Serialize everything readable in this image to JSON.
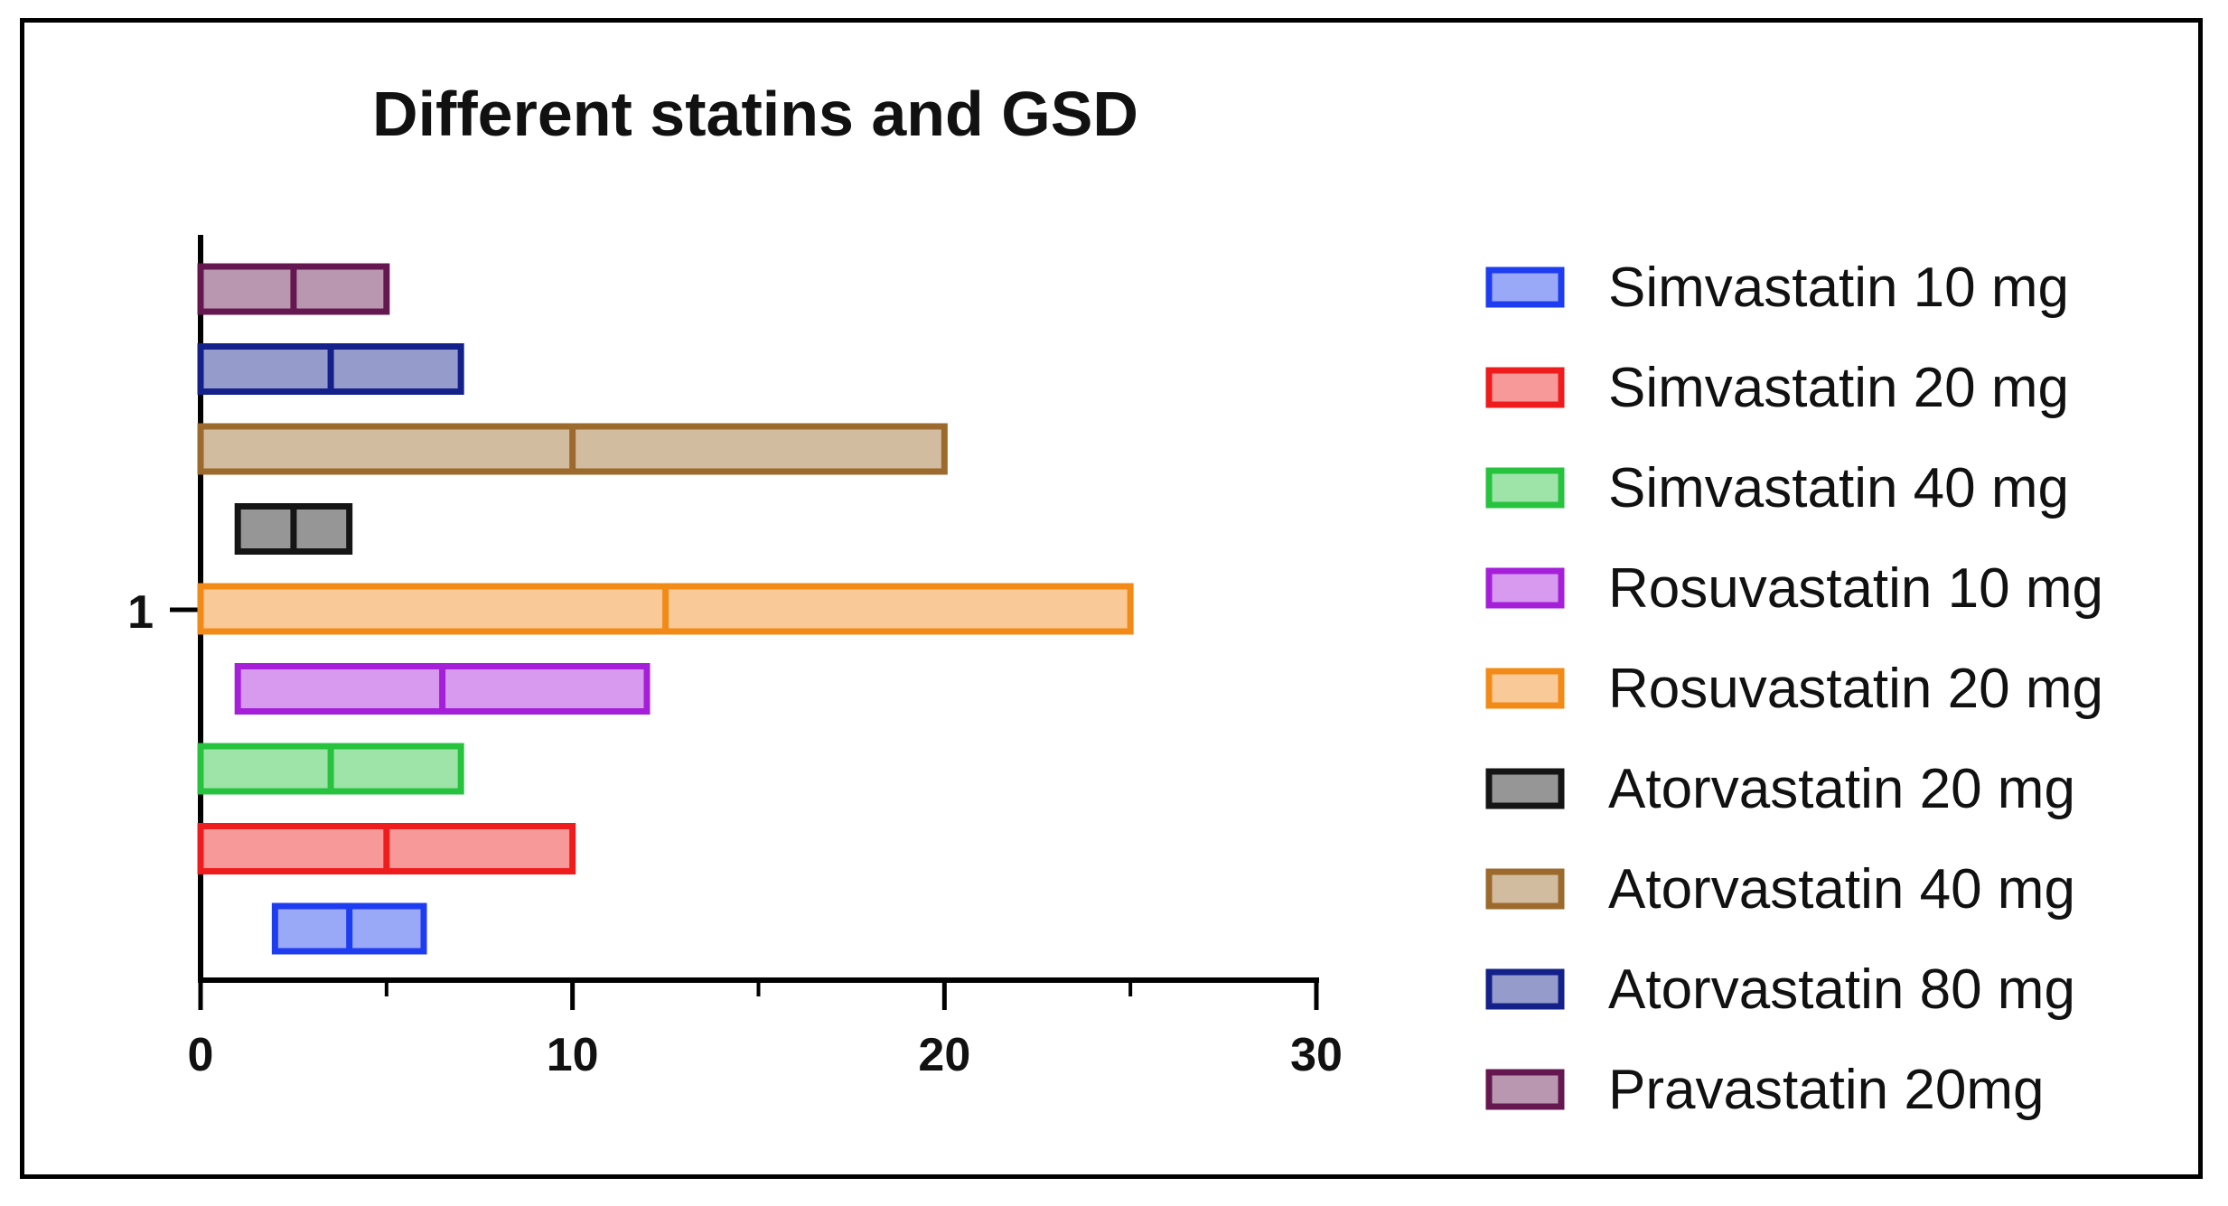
{
  "chart_data": {
    "type": "floating-bar",
    "orientation": "horizontal",
    "title": "Different statins and GSD",
    "xlabel": "",
    "ylabel": "",
    "xlim": [
      0,
      30
    ],
    "x_ticks": [
      "0",
      "10",
      "20",
      "30"
    ],
    "y_tick_labels": [
      "1"
    ],
    "grid": false,
    "legend_position": "right",
    "series": [
      {
        "name": "Simvastatin 10 mg",
        "min": 2,
        "median": 4,
        "max": 6,
        "color": "#1f3df0"
      },
      {
        "name": "Simvastatin 20 mg",
        "min": 0,
        "median": 5,
        "max": 10,
        "color": "#ee1c1c"
      },
      {
        "name": "Simvastatin 40 mg",
        "min": 0,
        "median": 3.5,
        "max": 7,
        "color": "#27c33f"
      },
      {
        "name": "Rosuvastatin 10 mg",
        "min": 1,
        "median": 6.5,
        "max": 12,
        "color": "#a51fd9"
      },
      {
        "name": "Rosuvastatin 20 mg",
        "min": 0,
        "median": 12.5,
        "max": 25,
        "color": "#f28a17"
      },
      {
        "name": "Atorvastatin 20 mg",
        "min": 1,
        "median": 2.5,
        "max": 4,
        "color": "#151515"
      },
      {
        "name": "Atorvastatin 40 mg",
        "min": 0,
        "median": 10,
        "max": 20,
        "color": "#9b6a2c"
      },
      {
        "name": "Atorvastatin 80 mg",
        "min": 0,
        "median": 3.5,
        "max": 7,
        "color": "#14218a"
      },
      {
        "name": "Pravastatin 20mg",
        "min": 0,
        "median": 2.5,
        "max": 5,
        "color": "#64184f"
      }
    ]
  }
}
